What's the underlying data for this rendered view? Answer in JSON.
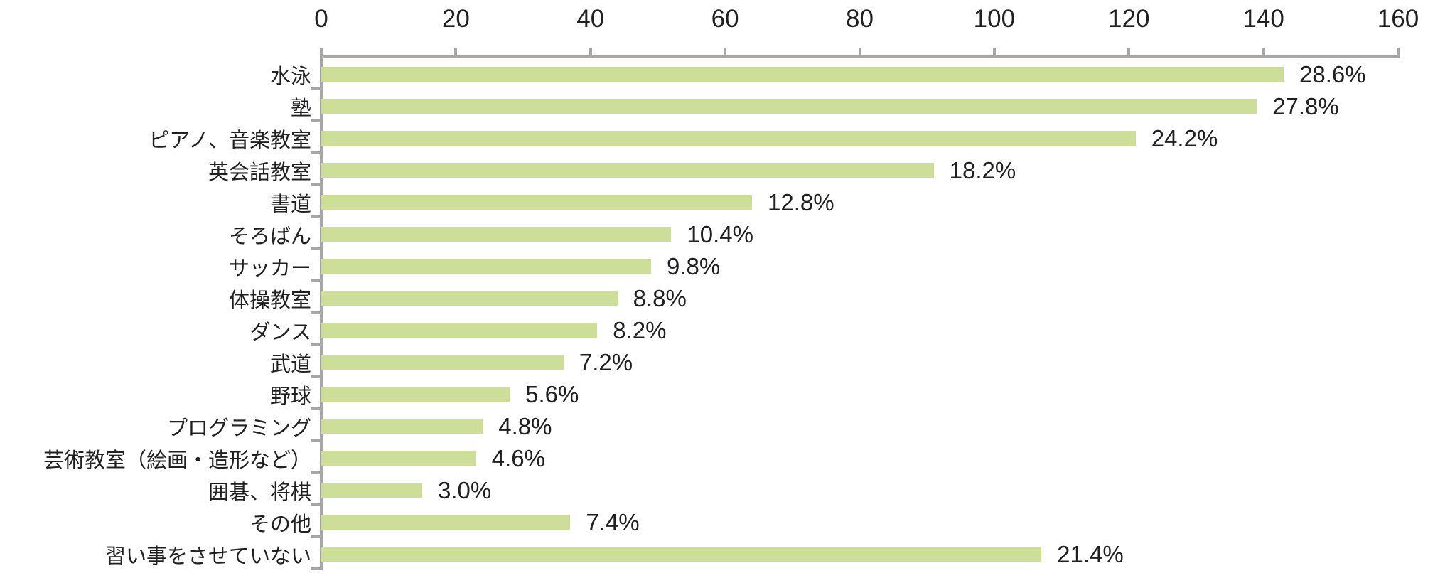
{
  "chart_data": {
    "type": "bar",
    "orientation": "horizontal",
    "title": "",
    "xlabel": "",
    "ylabel": "",
    "xlim": [
      0,
      160
    ],
    "x_ticks": [
      0,
      20,
      40,
      60,
      80,
      100,
      120,
      140,
      160
    ],
    "grid": false,
    "legend": "none",
    "categories": [
      "水泳",
      "塾",
      "ピアノ、音楽教室",
      "英会話教室",
      "書道",
      "そろばん",
      "サッカー",
      "体操教室",
      "ダンス",
      "武道",
      "野球",
      "プログラミング",
      "芸術教室（絵画・造形など）",
      "囲碁、将棋",
      "その他",
      "習い事をさせていない"
    ],
    "values": [
      143,
      139,
      121,
      91,
      64,
      52,
      49,
      44,
      41,
      36,
      28,
      24,
      23,
      15,
      37,
      107
    ],
    "data_labels": [
      "28.6%",
      "27.8%",
      "24.2%",
      "18.2%",
      "12.8%",
      "10.4%",
      "9.8%",
      "8.8%",
      "8.2%",
      "7.2%",
      "5.6%",
      "4.8%",
      "4.6%",
      "3.0%",
      "7.4%",
      "21.4%"
    ],
    "colors": {
      "bar": "#ccde97",
      "axis": "#a6a6a6",
      "text": "#202020"
    }
  }
}
